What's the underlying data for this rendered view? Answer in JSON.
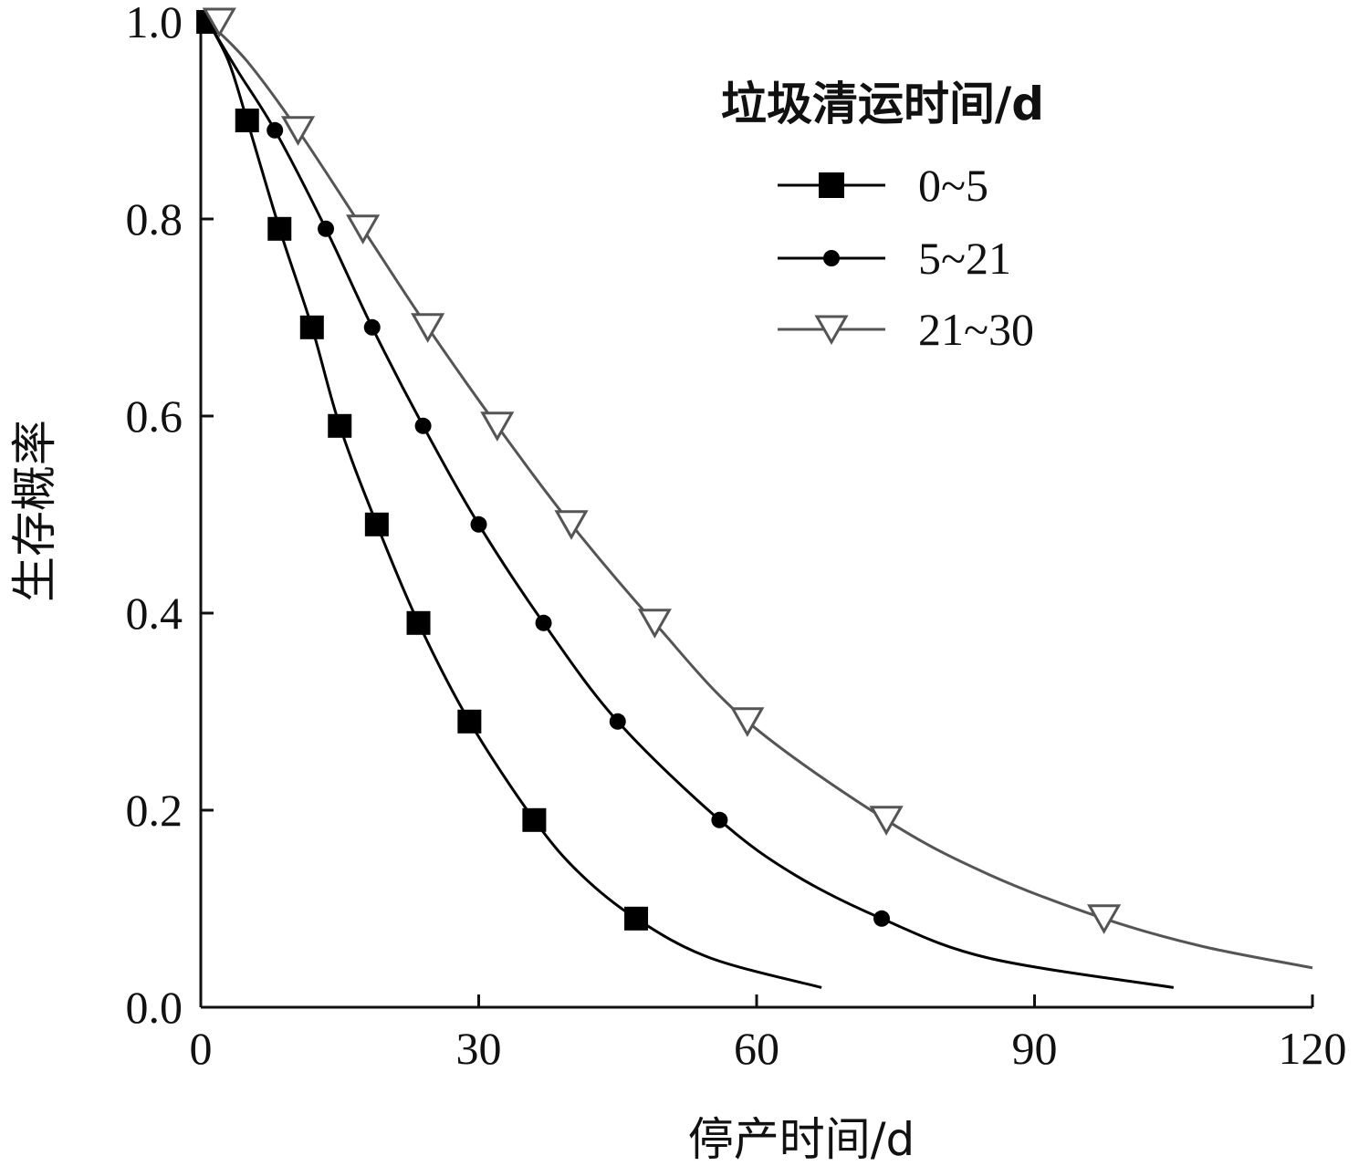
{
  "chart_data": {
    "type": "line",
    "title": "",
    "xlabel": "停产时间/d",
    "ylabel": "生存概率",
    "xlim": [
      0,
      120
    ],
    "ylim": [
      0,
      1.0
    ],
    "x_ticks": [
      "0",
      "30",
      "60",
      "90",
      "120"
    ],
    "y_ticks": [
      "0.0",
      "0.2",
      "0.4",
      "0.6",
      "0.8",
      "1.0"
    ],
    "grid": false,
    "legend": {
      "title": "垃圾清运时间/d",
      "position": "top-right"
    },
    "series": [
      {
        "name": "0~5",
        "marker": "filled-square",
        "color": "#000000",
        "markers": [
          {
            "x": 0.8,
            "y": 1.0
          },
          {
            "x": 5,
            "y": 0.9
          },
          {
            "x": 8.5,
            "y": 0.79
          },
          {
            "x": 12,
            "y": 0.69
          },
          {
            "x": 15,
            "y": 0.59
          },
          {
            "x": 19,
            "y": 0.49
          },
          {
            "x": 23.5,
            "y": 0.39
          },
          {
            "x": 29,
            "y": 0.29
          },
          {
            "x": 36,
            "y": 0.19
          },
          {
            "x": 47,
            "y": 0.09
          }
        ],
        "curve": [
          {
            "x": 0.8,
            "y": 1.0
          },
          {
            "x": 3,
            "y": 0.96
          },
          {
            "x": 5,
            "y": 0.9
          },
          {
            "x": 8.5,
            "y": 0.79
          },
          {
            "x": 12,
            "y": 0.69
          },
          {
            "x": 15,
            "y": 0.59
          },
          {
            "x": 19,
            "y": 0.49
          },
          {
            "x": 23.5,
            "y": 0.39
          },
          {
            "x": 29,
            "y": 0.29
          },
          {
            "x": 36,
            "y": 0.19
          },
          {
            "x": 41,
            "y": 0.135
          },
          {
            "x": 47,
            "y": 0.09
          },
          {
            "x": 55,
            "y": 0.05
          },
          {
            "x": 67,
            "y": 0.02
          }
        ]
      },
      {
        "name": "5~21",
        "marker": "filled-circle",
        "color": "#000000",
        "markers": [
          {
            "x": 0.8,
            "y": 1.0
          },
          {
            "x": 8,
            "y": 0.89
          },
          {
            "x": 13.5,
            "y": 0.79
          },
          {
            "x": 18.5,
            "y": 0.69
          },
          {
            "x": 24,
            "y": 0.59
          },
          {
            "x": 30,
            "y": 0.49
          },
          {
            "x": 37,
            "y": 0.39
          },
          {
            "x": 45,
            "y": 0.29
          },
          {
            "x": 56,
            "y": 0.19
          },
          {
            "x": 73.5,
            "y": 0.09
          }
        ],
        "curve": [
          {
            "x": 0.8,
            "y": 1.0
          },
          {
            "x": 4,
            "y": 0.95
          },
          {
            "x": 8,
            "y": 0.89
          },
          {
            "x": 13.5,
            "y": 0.79
          },
          {
            "x": 18.5,
            "y": 0.69
          },
          {
            "x": 24,
            "y": 0.59
          },
          {
            "x": 30,
            "y": 0.49
          },
          {
            "x": 37,
            "y": 0.39
          },
          {
            "x": 45,
            "y": 0.29
          },
          {
            "x": 56,
            "y": 0.19
          },
          {
            "x": 64,
            "y": 0.135
          },
          {
            "x": 73.5,
            "y": 0.09
          },
          {
            "x": 85,
            "y": 0.05
          },
          {
            "x": 105,
            "y": 0.02
          }
        ]
      },
      {
        "name": "21~30",
        "marker": "hollow-triangle-down",
        "color": "#555555",
        "markers": [
          {
            "x": 2,
            "y": 1.0
          },
          {
            "x": 10.5,
            "y": 0.89
          },
          {
            "x": 17.5,
            "y": 0.79
          },
          {
            "x": 24.5,
            "y": 0.69
          },
          {
            "x": 32,
            "y": 0.59
          },
          {
            "x": 40,
            "y": 0.49
          },
          {
            "x": 49,
            "y": 0.39
          },
          {
            "x": 59,
            "y": 0.29
          },
          {
            "x": 74,
            "y": 0.19
          },
          {
            "x": 97.5,
            "y": 0.09
          }
        ],
        "curve": [
          {
            "x": 0.8,
            "y": 1.0
          },
          {
            "x": 5,
            "y": 0.96
          },
          {
            "x": 10.5,
            "y": 0.89
          },
          {
            "x": 17.5,
            "y": 0.79
          },
          {
            "x": 24.5,
            "y": 0.69
          },
          {
            "x": 32,
            "y": 0.59
          },
          {
            "x": 40,
            "y": 0.49
          },
          {
            "x": 49,
            "y": 0.39
          },
          {
            "x": 59,
            "y": 0.29
          },
          {
            "x": 74,
            "y": 0.19
          },
          {
            "x": 85,
            "y": 0.135
          },
          {
            "x": 97.5,
            "y": 0.09
          },
          {
            "x": 108,
            "y": 0.062
          },
          {
            "x": 120,
            "y": 0.04
          }
        ]
      }
    ]
  }
}
